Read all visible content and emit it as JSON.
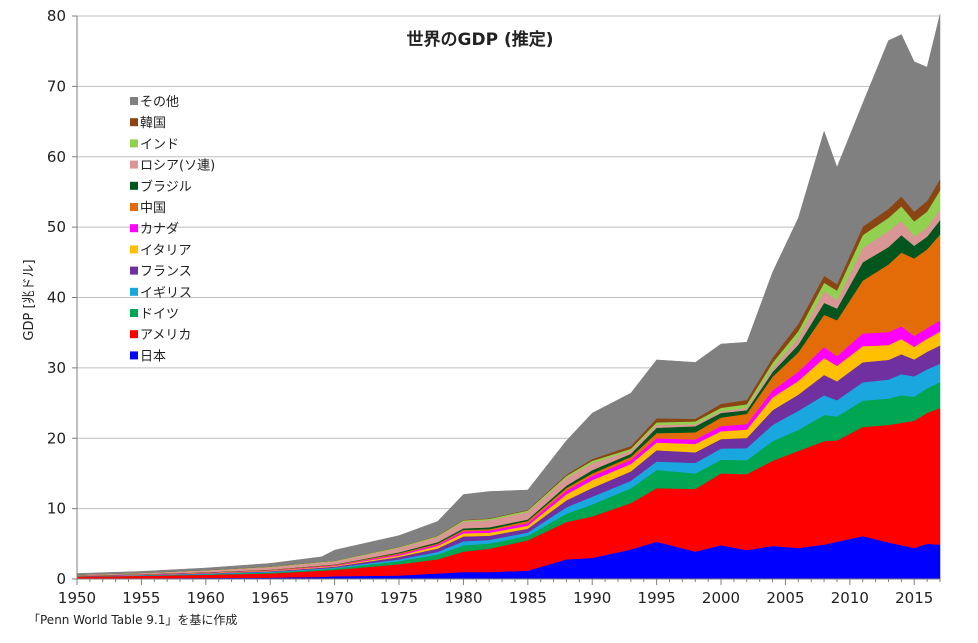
{
  "chart_data": {
    "type": "area",
    "title": "世界のGDP (推定)",
    "xlabel": "",
    "ylabel": "GDP [兆ドル]",
    "source_note": "「Penn World Table 9.1」を基に作成",
    "xlim": [
      1950,
      2017
    ],
    "ylim": [
      0,
      80
    ],
    "x_ticks": [
      1950,
      1955,
      1960,
      1965,
      1970,
      1975,
      1980,
      1985,
      1990,
      1995,
      2000,
      2005,
      2010,
      2015
    ],
    "y_ticks": [
      0,
      10,
      20,
      30,
      40,
      50,
      60,
      70,
      80
    ],
    "grid": "horizontal",
    "legend_position": "upper-left",
    "x": [
      1950,
      1955,
      1960,
      1965,
      1969,
      1970,
      1975,
      1978,
      1980,
      1982,
      1985,
      1988,
      1990,
      1993,
      1995,
      1998,
      2000,
      2002,
      2004,
      2006,
      2008,
      2009,
      2011,
      2013,
      2014,
      2015,
      2016,
      2017
    ],
    "series": [
      {
        "name": "日本",
        "color": "#0000ff",
        "values": [
          0.05,
          0.1,
          0.15,
          0.2,
          0.3,
          0.4,
          0.5,
          0.8,
          1.0,
          1.0,
          1.2,
          2.8,
          3.0,
          4.2,
          5.3,
          3.9,
          4.8,
          4.1,
          4.7,
          4.4,
          4.9,
          5.3,
          6.1,
          5.2,
          4.8,
          4.4,
          5.0,
          4.9
        ]
      },
      {
        "name": "アメリカ",
        "color": "#ff0000",
        "values": [
          0.3,
          0.35,
          0.45,
          0.6,
          0.9,
          0.9,
          1.6,
          2.0,
          2.9,
          3.3,
          4.3,
          5.3,
          5.9,
          6.6,
          7.6,
          8.9,
          10.2,
          10.8,
          12.1,
          13.8,
          14.7,
          14.4,
          15.5,
          16.7,
          17.4,
          18.1,
          18.6,
          19.4
        ]
      },
      {
        "name": "ドイツ",
        "color": "#00a651",
        "values": [
          0.02,
          0.04,
          0.08,
          0.12,
          0.16,
          0.2,
          0.45,
          0.7,
          0.9,
          0.75,
          0.65,
          1.2,
          1.7,
          2.1,
          2.6,
          2.2,
          1.95,
          2.0,
          2.8,
          3.0,
          3.7,
          3.4,
          3.75,
          3.75,
          3.9,
          3.4,
          3.5,
          3.7
        ]
      },
      {
        "name": "イギリス",
        "color": "#1aa7e0",
        "values": [
          0.03,
          0.05,
          0.07,
          0.1,
          0.12,
          0.12,
          0.24,
          0.35,
          0.55,
          0.5,
          0.46,
          0.9,
          1.1,
          1.05,
          1.2,
          1.5,
          1.6,
          1.7,
          2.3,
          2.7,
          2.8,
          2.3,
          2.6,
          2.7,
          3.0,
          2.9,
          2.7,
          2.6
        ]
      },
      {
        "name": "フランス",
        "color": "#7030a0",
        "values": [
          0.03,
          0.04,
          0.06,
          0.1,
          0.14,
          0.14,
          0.35,
          0.5,
          0.7,
          0.6,
          0.55,
          1.0,
          1.25,
          1.35,
          1.6,
          1.5,
          1.35,
          1.45,
          2.1,
          2.3,
          2.9,
          2.7,
          2.85,
          2.8,
          2.85,
          2.4,
          2.5,
          2.6
        ]
      },
      {
        "name": "イタリア",
        "color": "#ffc000",
        "values": [
          0.02,
          0.03,
          0.04,
          0.07,
          0.1,
          0.1,
          0.2,
          0.35,
          0.46,
          0.43,
          0.43,
          0.85,
          1.1,
          1.05,
          1.1,
          1.2,
          1.1,
          1.2,
          1.8,
          1.95,
          2.4,
          2.2,
          2.3,
          2.1,
          2.15,
          1.8,
          1.85,
          1.95
        ]
      },
      {
        "name": "カナダ",
        "color": "#ff00ff",
        "values": [
          0.02,
          0.03,
          0.04,
          0.05,
          0.08,
          0.08,
          0.17,
          0.2,
          0.27,
          0.3,
          0.36,
          0.5,
          0.6,
          0.58,
          0.6,
          0.62,
          0.74,
          0.76,
          1.0,
          1.3,
          1.55,
          1.37,
          1.8,
          1.85,
          1.8,
          1.55,
          1.5,
          1.6
        ]
      },
      {
        "name": "中国",
        "color": "#e36c09",
        "values": [
          0.02,
          0.03,
          0.05,
          0.07,
          0.09,
          0.09,
          0.16,
          0.15,
          0.19,
          0.2,
          0.3,
          0.4,
          0.36,
          0.44,
          0.73,
          1.03,
          1.21,
          1.47,
          1.96,
          2.75,
          4.6,
          5.1,
          7.5,
          9.6,
          10.5,
          11.0,
          11.2,
          12.2
        ]
      },
      {
        "name": "ブラジル",
        "color": "#00561c",
        "values": [
          0.01,
          0.02,
          0.03,
          0.03,
          0.04,
          0.04,
          0.12,
          0.2,
          0.23,
          0.27,
          0.22,
          0.33,
          0.46,
          0.44,
          0.77,
          0.86,
          0.65,
          0.5,
          0.67,
          1.1,
          1.7,
          1.67,
          2.6,
          2.47,
          2.46,
          1.8,
          1.8,
          2.05
        ]
      },
      {
        "name": "ロシア(ソ連)",
        "color": "#d99694",
        "values": [
          0.1,
          0.15,
          0.25,
          0.35,
          0.45,
          0.45,
          0.65,
          0.75,
          0.95,
          1.0,
          1.05,
          1.1,
          1.0,
          0.43,
          0.4,
          0.27,
          0.26,
          0.35,
          0.59,
          0.99,
          1.66,
          1.22,
          2.05,
          2.29,
          2.06,
          1.36,
          1.28,
          1.58
        ]
      },
      {
        "name": "インド",
        "color": "#92d050",
        "values": [
          0.02,
          0.03,
          0.04,
          0.06,
          0.06,
          0.06,
          0.1,
          0.13,
          0.19,
          0.2,
          0.23,
          0.29,
          0.32,
          0.28,
          0.37,
          0.42,
          0.47,
          0.51,
          0.71,
          0.94,
          1.2,
          1.34,
          1.82,
          1.86,
          2.04,
          2.1,
          2.29,
          2.65
        ]
      },
      {
        "name": "韓国",
        "color": "#8b4513",
        "values": [
          0.01,
          0.01,
          0.01,
          0.02,
          0.02,
          0.02,
          0.03,
          0.05,
          0.07,
          0.08,
          0.1,
          0.2,
          0.28,
          0.4,
          0.56,
          0.38,
          0.56,
          0.61,
          0.76,
          1.05,
          1.0,
          0.9,
          1.2,
          1.3,
          1.4,
          1.4,
          1.5,
          1.6
        ]
      },
      {
        "name": "その他",
        "color": "#808080",
        "values": [
          0.15,
          0.2,
          0.3,
          0.45,
          0.7,
          1.5,
          1.6,
          2.0,
          3.6,
          3.8,
          2.8,
          4.8,
          6.5,
          7.5,
          8.3,
          8.0,
          8.5,
          8.2,
          12.1,
          15.0,
          20.5,
          16.6,
          17.5,
          23.9,
          23.0,
          21.3,
          19.0,
          23.4
        ]
      }
    ]
  }
}
